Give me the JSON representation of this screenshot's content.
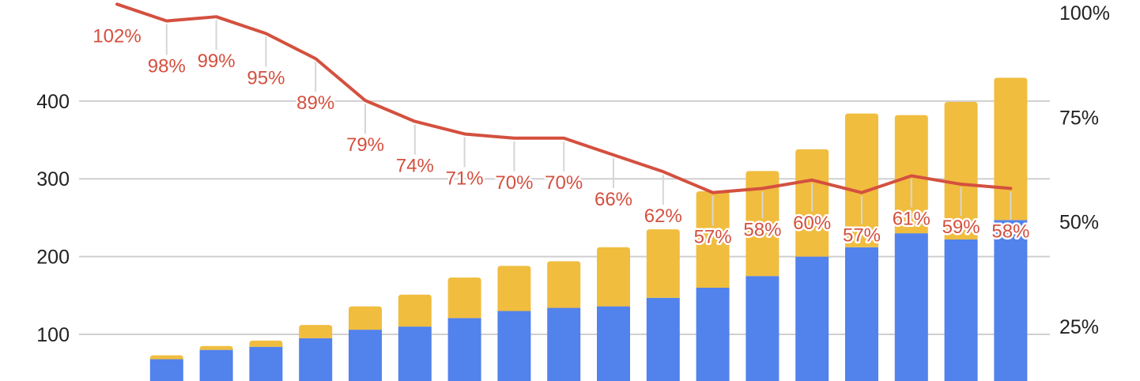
{
  "chart_data": {
    "type": "bar",
    "stacked": true,
    "title": "",
    "xlabel": "",
    "ylabel": "",
    "ylim": [
      40,
      530
    ],
    "y_ticks": [
      100,
      200,
      300,
      400
    ],
    "y2lim": [
      12,
      103
    ],
    "y2_ticks": [
      "25%",
      "50%",
      "75%",
      "100%"
    ],
    "grid": true,
    "series": [
      {
        "type": "bar",
        "color": "#5282ec",
        "values": [
          null,
          68,
          80,
          84,
          95,
          106,
          110,
          121,
          130,
          134,
          136,
          147,
          160,
          175,
          200,
          212,
          230,
          222,
          247
        ]
      },
      {
        "type": "bar",
        "color": "#f0bd3f",
        "values": [
          null,
          5,
          5,
          8,
          17,
          30,
          41,
          52,
          58,
          60,
          76,
          88,
          124,
          135,
          138,
          172,
          152,
          177,
          183
        ]
      },
      {
        "type": "line",
        "axis": "right",
        "color": "#d4503f",
        "values": [
          102,
          98,
          99,
          95,
          89,
          79,
          74,
          71,
          70,
          70,
          66,
          62,
          57,
          58,
          60,
          57,
          61,
          59,
          58
        ],
        "labels": [
          "102%",
          "98%",
          "99%",
          "95%",
          "89%",
          "79%",
          "74%",
          "71%",
          "70%",
          "70%",
          "66%",
          "62%",
          "57%",
          "58%",
          "60%",
          "57%",
          "61%",
          "59%",
          "58%"
        ]
      }
    ]
  }
}
